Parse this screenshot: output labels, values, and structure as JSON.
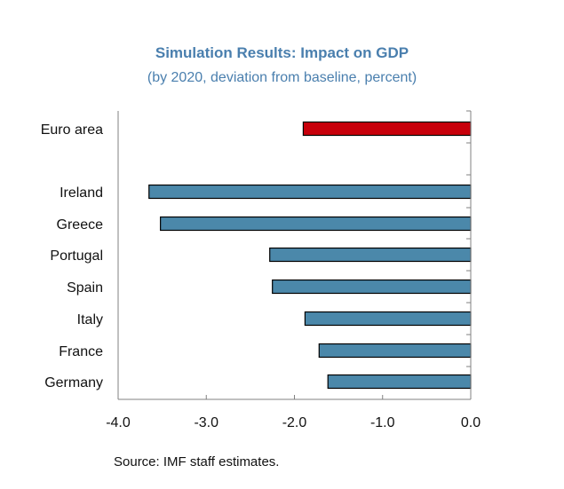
{
  "chart_data": {
    "type": "bar",
    "orientation": "horizontal",
    "title": "Simulation Results: Impact  on GDP",
    "subtitle": "(by 2020, deviation from baseline, percent)",
    "source": "Source: IMF staff estimates.",
    "categories": [
      "Euro area",
      "Ireland",
      "Greece",
      "Portugal",
      "Spain",
      "Italy",
      "France",
      "Germany"
    ],
    "values": [
      -1.9,
      -3.65,
      -3.52,
      -2.28,
      -2.25,
      -1.88,
      -1.72,
      -1.62
    ],
    "xlim": [
      -4.0,
      0.0
    ],
    "xticks": [
      -4.0,
      -3.0,
      -2.0,
      -1.0,
      0.0
    ],
    "xtick_labels": [
      "-4.0",
      "-3.0",
      "-2.0",
      "-1.0",
      "0.0"
    ],
    "grid": false,
    "colors": {
      "highlight": "#c8000b",
      "default": "#4b88aa",
      "outline": "#000000",
      "title": "#4a7fae"
    }
  }
}
